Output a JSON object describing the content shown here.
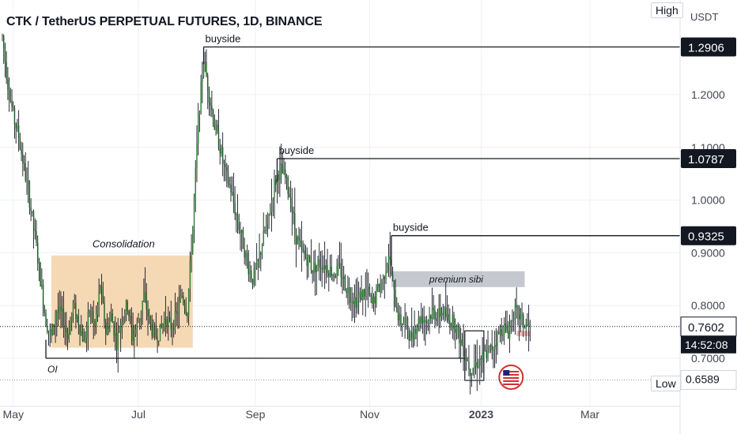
{
  "chart_title": "CTK / TetherUS PERPETUAL FUTURES, 1D, BINANCE",
  "currency": "USDT",
  "high_badge": "High",
  "low_badge": "Low",
  "colors": {
    "up_candle": "#26a69a",
    "candle_body": "#2e7d32",
    "wick": "#131722",
    "consolidation_fill": "#f3d2a8",
    "premium_fill": "#b2b5be",
    "grid": "#eef0f3",
    "axis_text": "#434651",
    "label_dark_bg": "#131722",
    "flag_red": "#d32f2f"
  },
  "chart_data": {
    "type": "candlestick",
    "title": "CTK / TetherUS PERPETUAL FUTURES, 1D, BINANCE",
    "x_ticks": [
      "May",
      "Jul",
      "Sep",
      "Nov",
      "2023",
      "Mar"
    ],
    "y_ticks": [
      "1.2000",
      "1.1000",
      "1.0000",
      "0.9000",
      "0.8000",
      "0.7000"
    ],
    "ylim": [
      0.64,
      1.36
    ],
    "price_labels": [
      {
        "value": 1.2906,
        "label": "1.2906"
      },
      {
        "value": 1.0787,
        "label": "1.0787"
      },
      {
        "value": 0.9325,
        "label": "0.9325"
      }
    ],
    "current_price": {
      "value": 0.7602,
      "label": "0.7602",
      "countdown": "14:52:08"
    },
    "high": {
      "value": 1.2906,
      "label": "1.2906"
    },
    "low": {
      "value": 0.6589,
      "label": "0.6589"
    },
    "series_path": [
      [
        0,
        1.31
      ],
      [
        4,
        1.22
      ],
      [
        8,
        1.16
      ],
      [
        12,
        1.12
      ],
      [
        16,
        1.06
      ],
      [
        20,
        1.0
      ],
      [
        24,
        0.93
      ],
      [
        28,
        0.85
      ],
      [
        32,
        0.77
      ],
      [
        36,
        0.74
      ],
      [
        40,
        0.79
      ],
      [
        44,
        0.78
      ],
      [
        48,
        0.74
      ],
      [
        52,
        0.8
      ],
      [
        56,
        0.77
      ],
      [
        60,
        0.73
      ],
      [
        64,
        0.79
      ],
      [
        68,
        0.76
      ],
      [
        72,
        0.84
      ],
      [
        76,
        0.75
      ],
      [
        80,
        0.78
      ],
      [
        84,
        0.73
      ],
      [
        88,
        0.78
      ],
      [
        92,
        0.8
      ],
      [
        96,
        0.74
      ],
      [
        100,
        0.77
      ],
      [
        104,
        0.82
      ],
      [
        108,
        0.77
      ],
      [
        112,
        0.74
      ],
      [
        116,
        0.75
      ],
      [
        120,
        0.78
      ],
      [
        124,
        0.76
      ],
      [
        128,
        0.78
      ],
      [
        132,
        0.82
      ],
      [
        136,
        0.79
      ],
      [
        140,
        0.95
      ],
      [
        144,
        1.15
      ],
      [
        148,
        1.27
      ],
      [
        152,
        1.2
      ],
      [
        156,
        1.14
      ],
      [
        160,
        1.1
      ],
      [
        164,
        1.05
      ],
      [
        168,
        1.02
      ],
      [
        172,
        0.97
      ],
      [
        176,
        0.93
      ],
      [
        180,
        0.88
      ],
      [
        184,
        0.85
      ],
      [
        188,
        0.88
      ],
      [
        192,
        0.93
      ],
      [
        196,
        0.97
      ],
      [
        200,
        1.03
      ],
      [
        204,
        1.06
      ],
      [
        208,
        1.04
      ],
      [
        212,
        1.0
      ],
      [
        216,
        0.93
      ],
      [
        220,
        0.9
      ],
      [
        224,
        0.89
      ],
      [
        228,
        0.87
      ],
      [
        232,
        0.88
      ],
      [
        236,
        0.88
      ],
      [
        240,
        0.87
      ],
      [
        244,
        0.86
      ],
      [
        248,
        0.87
      ],
      [
        252,
        0.84
      ],
      [
        256,
        0.82
      ],
      [
        260,
        0.81
      ],
      [
        264,
        0.82
      ],
      [
        268,
        0.83
      ],
      [
        272,
        0.8
      ],
      [
        276,
        0.83
      ],
      [
        280,
        0.85
      ],
      [
        284,
        0.9
      ],
      [
        288,
        0.82
      ],
      [
        292,
        0.77
      ],
      [
        296,
        0.77
      ],
      [
        300,
        0.74
      ],
      [
        304,
        0.76
      ],
      [
        308,
        0.78
      ],
      [
        312,
        0.77
      ],
      [
        316,
        0.79
      ],
      [
        320,
        0.78
      ],
      [
        324,
        0.79
      ],
      [
        328,
        0.77
      ],
      [
        332,
        0.77
      ],
      [
        336,
        0.74
      ],
      [
        340,
        0.71
      ],
      [
        344,
        0.68
      ],
      [
        348,
        0.69
      ],
      [
        352,
        0.7
      ],
      [
        356,
        0.71
      ],
      [
        360,
        0.72
      ],
      [
        364,
        0.74
      ],
      [
        368,
        0.76
      ],
      [
        372,
        0.75
      ],
      [
        376,
        0.79
      ],
      [
        380,
        0.78
      ],
      [
        384,
        0.76
      ],
      [
        388,
        0.76
      ]
    ],
    "levels": [
      {
        "name": "buyside",
        "value": 1.2906,
        "x_start": 148
      },
      {
        "name": "buyside",
        "value": 1.0787,
        "x_start": 202
      },
      {
        "name": "buyside",
        "value": 0.9325,
        "x_start": 286
      },
      {
        "name": "OI",
        "value": 0.7,
        "x_start": 32
      }
    ],
    "zones": [
      {
        "label": "Consolidation",
        "x_from": 36,
        "x_to": 140,
        "y_from": 0.72,
        "y_to": 0.895
      },
      {
        "label": "premium sibi",
        "x_from": 286,
        "x_to": 384,
        "y_from": 0.835,
        "y_to": 0.865
      },
      {
        "label": "",
        "x_from": 340,
        "x_to": 354,
        "y_from": 0.658,
        "y_to": 0.752
      }
    ],
    "annotations": [
      "buyside",
      "buyside",
      "buyside",
      "Consolidation",
      "premium sibi",
      "OI"
    ]
  }
}
